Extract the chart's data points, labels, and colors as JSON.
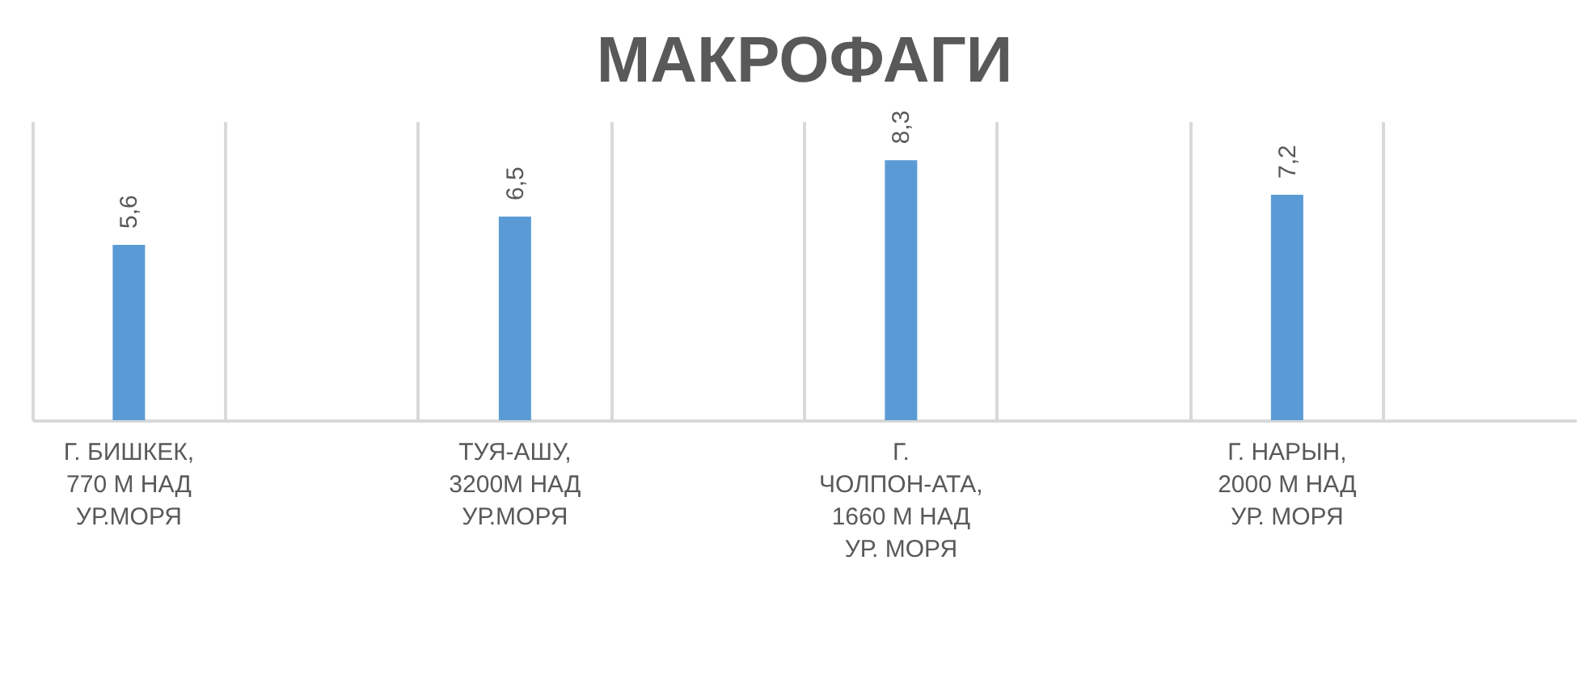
{
  "chart_data": {
    "type": "bar",
    "title": "МАКРОФАГИ",
    "categories": [
      "Г. БИШКЕК, 770 М НАД УР.МОРЯ",
      null,
      "ТУЯ-АШУ, 3200М НАД УР.МОРЯ",
      null,
      "Г. ЧОЛПОН-АТА, 1660 М НАД УР. МОРЯ",
      null,
      "Г. НАРЫН, 2000 М НАД УР. МОРЯ",
      null
    ],
    "values": [
      5.6,
      null,
      6.5,
      null,
      8.3,
      null,
      7.2,
      null
    ],
    "value_labels": [
      "5,6",
      null,
      "6,5",
      null,
      "8,3",
      null,
      "7,2",
      null
    ],
    "color": "#5b9bd5",
    "grid": "x"
  }
}
